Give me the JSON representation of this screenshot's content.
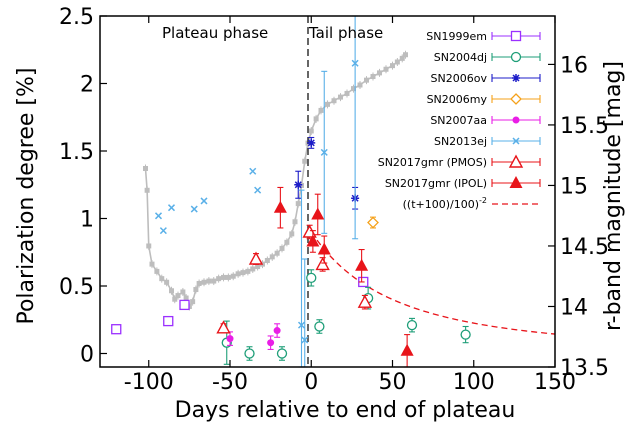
{
  "chart_data": {
    "type": "scatter",
    "xlabel": "Days relative to end of plateau",
    "ylabel": "Polarization degree [%]",
    "y2label": "r-band magnitude [mag]",
    "xlim": [
      -130,
      150
    ],
    "ylim": [
      -0.1,
      2.5
    ],
    "y2lim": [
      16.4,
      13.5
    ],
    "x_ticks": [
      "-100",
      "-50",
      "0",
      "50",
      "100",
      "150"
    ],
    "y_ticks": [
      "0",
      "0.5",
      "1",
      "1.5",
      "2",
      "2.5"
    ],
    "y2_ticks": [
      "13.5",
      "14",
      "14.5",
      "15",
      "15.5",
      "16"
    ],
    "phase_labels": {
      "plateau": "Plateau phase",
      "tail": "Tail phase"
    },
    "end_of_plateau_x": -2,
    "grid": false,
    "legend_position": "top-right",
    "colors": {
      "SN1999em": "#9b30ff",
      "SN2004dj": "#1e9e78",
      "SN2006ov": "#1c1cc8",
      "SN2006my": "#f5a11a",
      "SN2007aa": "#e91ee6",
      "SN2013ej": "#5ab0e8",
      "SN2017gmr_PMOS": "#e8141a",
      "SN2017gmr_IPOL": "#e8141a",
      "model": "#e8141a",
      "light_curve": "#bdbdbd"
    },
    "series": [
      {
        "name": "SN1999em",
        "marker": "open-square",
        "points": [
          {
            "x": -120,
            "y": 0.18,
            "err": 0.02
          },
          {
            "x": -88,
            "y": 0.24,
            "err": 0.03
          },
          {
            "x": -78,
            "y": 0.36,
            "err": 0.02
          },
          {
            "x": 32,
            "y": 0.53,
            "err": 0.02
          }
        ]
      },
      {
        "name": "SN2004dj",
        "marker": "open-circle",
        "points": [
          {
            "x": -52,
            "y": 0.08,
            "err": 0.16
          },
          {
            "x": -38,
            "y": 0.0,
            "err": 0.05
          },
          {
            "x": -18,
            "y": 0.0,
            "err": 0.05
          },
          {
            "x": 0,
            "y": 0.56,
            "err": 0.06
          },
          {
            "x": 5,
            "y": 0.2,
            "err": 0.05
          },
          {
            "x": 35,
            "y": 0.41,
            "err": 0.08
          },
          {
            "x": 62,
            "y": 0.21,
            "err": 0.05
          },
          {
            "x": 95,
            "y": 0.14,
            "err": 0.06
          }
        ]
      },
      {
        "name": "SN2006ov",
        "marker": "star",
        "points": [
          {
            "x": -8,
            "y": 1.25,
            "err": 0.1
          },
          {
            "x": 0,
            "y": 1.56,
            "err": 0.04
          },
          {
            "x": 27,
            "y": 1.15,
            "err": 0.08
          }
        ]
      },
      {
        "name": "SN2006my",
        "marker": "open-diamond",
        "points": [
          {
            "x": 38,
            "y": 0.97,
            "err": 0.04
          }
        ]
      },
      {
        "name": "SN2007aa",
        "marker": "filled-circle",
        "points": [
          {
            "x": -50,
            "y": 0.11,
            "err": 0.05
          },
          {
            "x": -25,
            "y": 0.08,
            "err": 0.05
          },
          {
            "x": -21,
            "y": 0.17,
            "err": 0.05
          }
        ]
      },
      {
        "name": "SN2013ej",
        "marker": "cross",
        "points": [
          {
            "x": -94,
            "y": 1.02,
            "err": 0.0
          },
          {
            "x": -91,
            "y": 0.91,
            "err": 0.0
          },
          {
            "x": -86,
            "y": 1.08,
            "err": 0.0
          },
          {
            "x": -72,
            "y": 1.07,
            "err": 0.0
          },
          {
            "x": -66,
            "y": 1.13,
            "err": 0.0
          },
          {
            "x": -36,
            "y": 1.35,
            "err": 0.0
          },
          {
            "x": -33,
            "y": 1.21,
            "err": 0.0
          },
          {
            "x": -6,
            "y": 0.21,
            "err": 1.0
          },
          {
            "x": -4,
            "y": 0.1,
            "err": 0.6
          },
          {
            "x": 8,
            "y": 1.49,
            "err": 0.6
          },
          {
            "x": 27,
            "y": 2.15,
            "err": 1.3
          }
        ]
      },
      {
        "name": "SN2017gmr (PMOS)",
        "marker": "open-triangle",
        "points": [
          {
            "x": -54,
            "y": 0.19,
            "err": 0.03
          },
          {
            "x": -34,
            "y": 0.7,
            "err": 0.04
          },
          {
            "x": -1,
            "y": 0.9,
            "err": 0.05
          },
          {
            "x": 7,
            "y": 0.66,
            "err": 0.05
          },
          {
            "x": 33,
            "y": 0.38,
            "err": 0.05
          }
        ]
      },
      {
        "name": "SN2017gmr (IPOL)",
        "marker": "filled-triangle",
        "points": [
          {
            "x": -19,
            "y": 1.08,
            "err": 0.15
          },
          {
            "x": 1,
            "y": 0.83,
            "err": 0.08
          },
          {
            "x": 4,
            "y": 1.03,
            "err": 0.15
          },
          {
            "x": 8,
            "y": 0.77,
            "err": 0.1
          },
          {
            "x": 31,
            "y": 0.65,
            "err": 0.12
          },
          {
            "x": 59,
            "y": 0.02,
            "err": 0.12
          }
        ]
      }
    ],
    "model_curve": {
      "name": "((t+100)/100)",
      "name_superscript": "-2",
      "x_start": 0,
      "x_end": 150,
      "scale": 0.9
    },
    "light_curve": {
      "axis": "right",
      "points": [
        [
          -102,
          15.14
        ],
        [
          -101,
          14.96
        ],
        [
          -100,
          14.5
        ],
        [
          -98,
          14.35
        ],
        [
          -95,
          14.29
        ],
        [
          -92,
          14.23
        ],
        [
          -89,
          14.2
        ],
        [
          -86,
          14.13
        ],
        [
          -84,
          14.06
        ],
        [
          -82,
          14.09
        ],
        [
          -79,
          14.12
        ],
        [
          -77,
          14.07
        ],
        [
          -75,
          14.0
        ],
        [
          -73,
          14.04
        ],
        [
          -71,
          14.14
        ],
        [
          -69,
          14.19
        ],
        [
          -66,
          14.2
        ],
        [
          -63,
          14.21
        ],
        [
          -60,
          14.21
        ],
        [
          -57,
          14.23
        ],
        [
          -54,
          14.24
        ],
        [
          -51,
          14.24
        ],
        [
          -48,
          14.25
        ],
        [
          -45,
          14.27
        ],
        [
          -42,
          14.28
        ],
        [
          -39,
          14.29
        ],
        [
          -36,
          14.31
        ],
        [
          -33,
          14.33
        ],
        [
          -30,
          14.35
        ],
        [
          -27,
          14.38
        ],
        [
          -24,
          14.41
        ],
        [
          -21,
          14.44
        ],
        [
          -18,
          14.48
        ],
        [
          -15,
          14.53
        ],
        [
          -12,
          14.6
        ],
        [
          -10,
          14.7
        ],
        [
          -8,
          14.85
        ],
        [
          -6,
          15.0
        ],
        [
          -4,
          15.2
        ],
        [
          -2,
          15.35
        ],
        [
          0,
          15.45
        ],
        [
          3,
          15.55
        ],
        [
          6,
          15.62
        ],
        [
          10,
          15.67
        ],
        [
          14,
          15.7
        ],
        [
          18,
          15.73
        ],
        [
          22,
          15.76
        ],
        [
          26,
          15.8
        ],
        [
          30,
          15.83
        ],
        [
          34,
          15.87
        ],
        [
          38,
          15.9
        ],
        [
          42,
          15.93
        ],
        [
          46,
          15.96
        ],
        [
          50,
          15.99
        ],
        [
          53,
          16.02
        ],
        [
          56,
          16.05
        ],
        [
          58,
          16.08
        ]
      ]
    }
  }
}
